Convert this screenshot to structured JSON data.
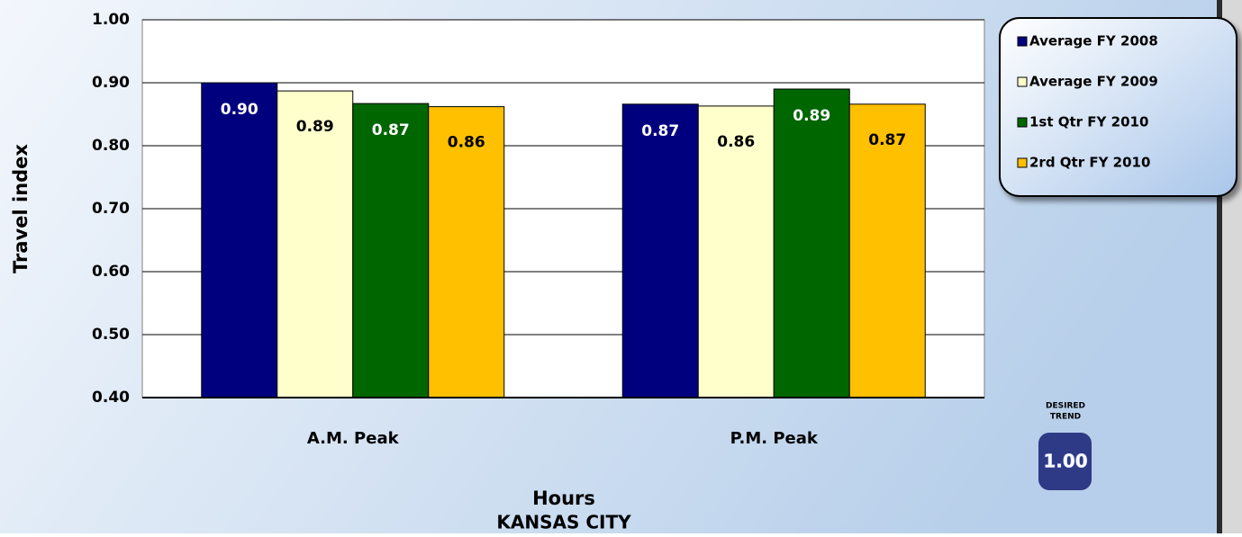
{
  "chart_data": {
    "type": "bar",
    "title": "KANSAS CITY",
    "x_label": "Hours",
    "y_label": "Travel index",
    "categories": [
      "A.M. Peak",
      "P.M. Peak"
    ],
    "series": [
      {
        "name": "Average FY 2008",
        "color": "#00007f",
        "label_color": "#ffffff",
        "values": [
          0.9,
          0.866
        ],
        "value_labels": [
          "0.90",
          "0.87"
        ]
      },
      {
        "name": "Average FY 2009",
        "color": "#ffffcc",
        "label_color": "#000000",
        "values": [
          0.887,
          0.863
        ],
        "value_labels": [
          "0.89",
          "0.86"
        ]
      },
      {
        "name": "1st Qtr FY 2010",
        "color": "#006600",
        "label_color": "#ffffff",
        "values": [
          0.867,
          0.89
        ],
        "value_labels": [
          "0.87",
          "0.89"
        ]
      },
      {
        "name": "2rd Qtr FY 2010",
        "color": "#ffc000",
        "label_color": "#000000",
        "values": [
          0.862,
          0.866
        ],
        "value_labels": [
          "0.86",
          "0.87"
        ]
      }
    ],
    "ylim": [
      0.4,
      1.0
    ],
    "yticks": [
      {
        "value": 0.4,
        "label": "0.40"
      },
      {
        "value": 0.5,
        "label": "0.50"
      },
      {
        "value": 0.6,
        "label": "0.60"
      },
      {
        "value": 0.7,
        "label": "0.70"
      },
      {
        "value": 0.8,
        "label": "0.80"
      },
      {
        "value": 0.9,
        "label": "0.90"
      },
      {
        "value": 1.0,
        "label": "1.00"
      }
    ],
    "grid": true,
    "legend": "right",
    "desired_trend": {
      "lines": [
        "DESIRED",
        "TREND"
      ],
      "value_label": "1.00"
    }
  }
}
